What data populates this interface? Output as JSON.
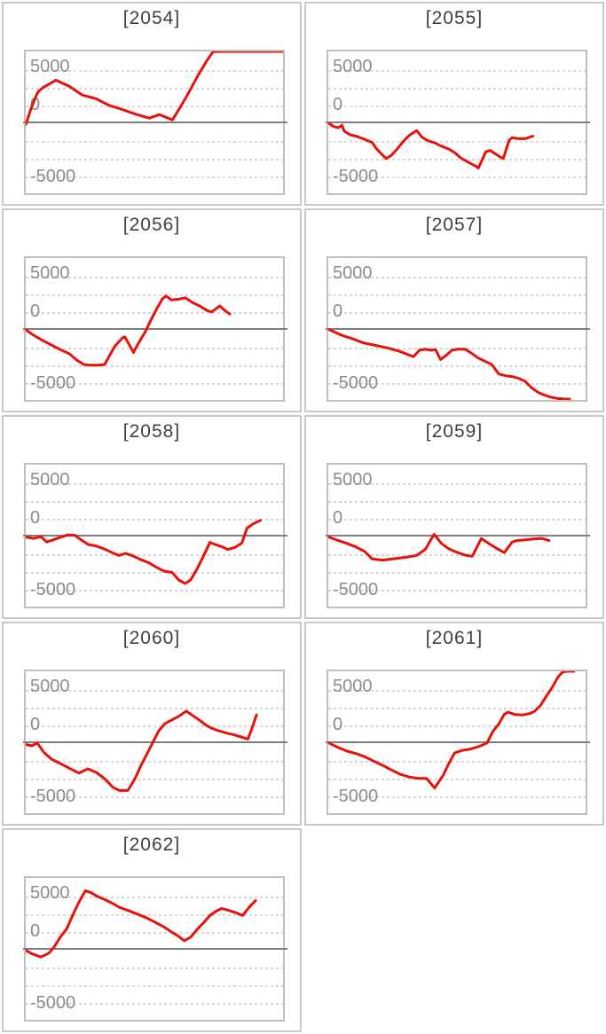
{
  "theme": {
    "line_color": "#e8120c",
    "zero_axis_color": "#7f7f7f",
    "gridline_color": "#d7d7d7",
    "tick_label_color": "#8c8c8c",
    "title_color": "#3f3f3f",
    "panel_border_color": "#c8c8c8",
    "plot_border_color": "#bfbfbf",
    "background": "#ffffff"
  },
  "chart_data": {
    "type": "line",
    "layout": "small-multiples 2 columns x 5 rows, last cell empty",
    "y_ticks": [
      "5000",
      "0",
      "-5000"
    ],
    "y_range": [
      -10000,
      10000
    ],
    "grid_interval_units": 2500,
    "legend": "none",
    "x_axis": "hidden (spins/time), values below are [x_percent, value]",
    "charts": [
      {
        "title": "[2054]",
        "series": [
          [
            0,
            -300
          ],
          [
            2.4,
            2300
          ],
          [
            4.6,
            4200
          ],
          [
            6.3,
            4800
          ],
          [
            11.7,
            5950
          ],
          [
            16.9,
            5100
          ],
          [
            22,
            3850
          ],
          [
            27.2,
            3350
          ],
          [
            32.4,
            2400
          ],
          [
            37.6,
            1800
          ],
          [
            42.8,
            1150
          ],
          [
            48,
            600
          ],
          [
            52,
            1100
          ],
          [
            57,
            350
          ],
          [
            60,
            2100
          ],
          [
            63.6,
            4350
          ],
          [
            67,
            6650
          ],
          [
            70.5,
            8750
          ],
          [
            72.8,
            9950
          ],
          [
            76,
            10000
          ],
          [
            100,
            10000
          ]
        ]
      },
      {
        "title": "[2055]",
        "series": [
          [
            0,
            -100
          ],
          [
            2.2,
            -600
          ],
          [
            3.9,
            -750
          ],
          [
            5.3,
            -400
          ],
          [
            6.2,
            -1250
          ],
          [
            8.5,
            -1750
          ],
          [
            11.3,
            -2000
          ],
          [
            14.2,
            -2400
          ],
          [
            17.1,
            -2850
          ],
          [
            18.8,
            -3750
          ],
          [
            21.1,
            -4600
          ],
          [
            22.4,
            -5100
          ],
          [
            24.5,
            -4650
          ],
          [
            26.8,
            -3750
          ],
          [
            29.1,
            -2700
          ],
          [
            31.4,
            -1850
          ],
          [
            34.3,
            -1150
          ],
          [
            36.5,
            -2100
          ],
          [
            38.8,
            -2600
          ],
          [
            41.1,
            -2850
          ],
          [
            44,
            -3350
          ],
          [
            46.8,
            -3750
          ],
          [
            49.1,
            -4250
          ],
          [
            51.4,
            -5000
          ],
          [
            54.3,
            -5600
          ],
          [
            57.2,
            -6150
          ],
          [
            58.3,
            -6450
          ],
          [
            61.2,
            -4150
          ],
          [
            62.9,
            -3950
          ],
          [
            64.6,
            -4350
          ],
          [
            66.9,
            -4900
          ],
          [
            68,
            -5100
          ],
          [
            70.3,
            -2500
          ],
          [
            71.5,
            -2150
          ],
          [
            73.8,
            -2300
          ],
          [
            76.6,
            -2300
          ],
          [
            78.9,
            -2000
          ],
          [
            79.5,
            -1950
          ]
        ]
      },
      {
        "title": "[2056]",
        "series": [
          [
            0,
            -100
          ],
          [
            3,
            -850
          ],
          [
            6.5,
            -1600
          ],
          [
            10,
            -2250
          ],
          [
            13.4,
            -2900
          ],
          [
            17,
            -3500
          ],
          [
            19.7,
            -4350
          ],
          [
            22.6,
            -5000
          ],
          [
            25,
            -5100
          ],
          [
            28.4,
            -5100
          ],
          [
            30.7,
            -5000
          ],
          [
            32.4,
            -3850
          ],
          [
            34.7,
            -2400
          ],
          [
            37.6,
            -1250
          ],
          [
            38.5,
            -1100
          ],
          [
            40.5,
            -2400
          ],
          [
            41.9,
            -3300
          ],
          [
            43.9,
            -1950
          ],
          [
            46.3,
            -500
          ],
          [
            48.5,
            1150
          ],
          [
            50.9,
            2850
          ],
          [
            53.2,
            4300
          ],
          [
            54.6,
            4650
          ],
          [
            56.6,
            4100
          ],
          [
            59.5,
            4200
          ],
          [
            62,
            4400
          ],
          [
            64.7,
            3750
          ],
          [
            67.6,
            3250
          ],
          [
            70.5,
            2600
          ],
          [
            72.2,
            2400
          ],
          [
            73.9,
            2850
          ],
          [
            75.4,
            3250
          ],
          [
            77.4,
            2600
          ],
          [
            79.3,
            2100
          ]
        ]
      },
      {
        "title": "[2057]",
        "series": [
          [
            0.4,
            -100
          ],
          [
            5,
            -850
          ],
          [
            9.6,
            -1400
          ],
          [
            13.6,
            -1950
          ],
          [
            18.2,
            -2300
          ],
          [
            22.8,
            -2650
          ],
          [
            27.4,
            -3100
          ],
          [
            32,
            -3750
          ],
          [
            33.1,
            -3900
          ],
          [
            35.4,
            -3000
          ],
          [
            37.7,
            -2850
          ],
          [
            40,
            -3000
          ],
          [
            41.7,
            -2900
          ],
          [
            43.6,
            -4300
          ],
          [
            45.7,
            -3750
          ],
          [
            48,
            -3000
          ],
          [
            50.3,
            -2850
          ],
          [
            53.2,
            -2850
          ],
          [
            55.4,
            -3350
          ],
          [
            58.3,
            -4100
          ],
          [
            61.2,
            -4600
          ],
          [
            63.5,
            -5000
          ],
          [
            66.3,
            -6350
          ],
          [
            69.2,
            -6600
          ],
          [
            72.1,
            -6750
          ],
          [
            74.3,
            -7000
          ],
          [
            76.6,
            -7400
          ],
          [
            78.9,
            -8250
          ],
          [
            81.2,
            -8850
          ],
          [
            83.5,
            -9250
          ],
          [
            86.4,
            -9600
          ],
          [
            89.2,
            -9800
          ],
          [
            92.1,
            -9875
          ],
          [
            93.8,
            -9875
          ]
        ]
      },
      {
        "title": "[2058]",
        "series": [
          [
            0,
            -200
          ],
          [
            3,
            -400
          ],
          [
            5.9,
            -150
          ],
          [
            8.2,
            -900
          ],
          [
            12.2,
            -400
          ],
          [
            16.3,
            100
          ],
          [
            19.1,
            50
          ],
          [
            21.5,
            -600
          ],
          [
            24.3,
            -1250
          ],
          [
            27.2,
            -1450
          ],
          [
            30.7,
            -1900
          ],
          [
            33.6,
            -2400
          ],
          [
            36.2,
            -2800
          ],
          [
            38.8,
            -2500
          ],
          [
            41.3,
            -2800
          ],
          [
            44.5,
            -3350
          ],
          [
            48,
            -3850
          ],
          [
            50.5,
            -4400
          ],
          [
            53.7,
            -5000
          ],
          [
            56.9,
            -5200
          ],
          [
            59.5,
            -6250
          ],
          [
            62,
            -6750
          ],
          [
            64.1,
            -6250
          ],
          [
            66.4,
            -4800
          ],
          [
            68.8,
            -3100
          ],
          [
            71.6,
            -950
          ],
          [
            73.6,
            -1250
          ],
          [
            76.2,
            -1550
          ],
          [
            78.5,
            -1950
          ],
          [
            81.4,
            -1650
          ],
          [
            84,
            -1050
          ],
          [
            86,
            1050
          ],
          [
            88.3,
            1650
          ],
          [
            91.2,
            2150
          ]
        ]
      },
      {
        "title": "[2059]",
        "series": [
          [
            0.2,
            -200
          ],
          [
            3.9,
            -700
          ],
          [
            7.3,
            -1100
          ],
          [
            10.8,
            -1600
          ],
          [
            14.2,
            -2250
          ],
          [
            17.1,
            -3300
          ],
          [
            21.1,
            -3450
          ],
          [
            25.7,
            -3250
          ],
          [
            30.2,
            -3050
          ],
          [
            34.3,
            -2800
          ],
          [
            37.7,
            -1950
          ],
          [
            41.1,
            200
          ],
          [
            44,
            -1100
          ],
          [
            46.8,
            -1850
          ],
          [
            50.3,
            -2400
          ],
          [
            53.7,
            -2800
          ],
          [
            56,
            -2900
          ],
          [
            59.5,
            -400
          ],
          [
            62.3,
            -1100
          ],
          [
            65.7,
            -1850
          ],
          [
            68.4,
            -2400
          ],
          [
            71.5,
            -900
          ],
          [
            73.2,
            -700
          ],
          [
            76.6,
            -600
          ],
          [
            80.1,
            -450
          ],
          [
            82.9,
            -400
          ],
          [
            84.1,
            -500
          ],
          [
            85.8,
            -700
          ]
        ]
      },
      {
        "title": "[2060]",
        "series": [
          [
            0,
            -300
          ],
          [
            2.4,
            -500
          ],
          [
            4.5,
            -100
          ],
          [
            7,
            -1400
          ],
          [
            10.1,
            -2400
          ],
          [
            13.4,
            -3000
          ],
          [
            16.9,
            -3650
          ],
          [
            20.7,
            -4350
          ],
          [
            24.1,
            -3750
          ],
          [
            27.4,
            -4250
          ],
          [
            30.7,
            -5150
          ],
          [
            33.9,
            -6350
          ],
          [
            36.4,
            -6800
          ],
          [
            39.7,
            -6800
          ],
          [
            42.5,
            -5100
          ],
          [
            44.7,
            -3350
          ],
          [
            47.1,
            -1650
          ],
          [
            49.4,
            0
          ],
          [
            51.7,
            1600
          ],
          [
            54,
            2600
          ],
          [
            56.3,
            3050
          ],
          [
            59.5,
            3650
          ],
          [
            62.4,
            4400
          ],
          [
            65.3,
            3650
          ],
          [
            67.8,
            3050
          ],
          [
            70.1,
            2400
          ],
          [
            72.4,
            1950
          ],
          [
            75.1,
            1600
          ],
          [
            78,
            1300
          ],
          [
            80.9,
            1050
          ],
          [
            83.7,
            750
          ],
          [
            86.3,
            450
          ],
          [
            87.8,
            1800
          ],
          [
            89.7,
            3850
          ]
        ]
      },
      {
        "title": "[2061]",
        "series": [
          [
            0.2,
            -100
          ],
          [
            3.9,
            -750
          ],
          [
            7.3,
            -1250
          ],
          [
            10.8,
            -1600
          ],
          [
            14.2,
            -2050
          ],
          [
            17.6,
            -2650
          ],
          [
            21.1,
            -3250
          ],
          [
            24.5,
            -3900
          ],
          [
            27.9,
            -4500
          ],
          [
            31.4,
            -4900
          ],
          [
            35.1,
            -5100
          ],
          [
            38.2,
            -5100
          ],
          [
            41.3,
            -6450
          ],
          [
            44.6,
            -4700
          ],
          [
            46.8,
            -3050
          ],
          [
            49.1,
            -1500
          ],
          [
            52,
            -1150
          ],
          [
            55.4,
            -950
          ],
          [
            58.9,
            -550
          ],
          [
            61.7,
            -100
          ],
          [
            64,
            1550
          ],
          [
            66.3,
            2600
          ],
          [
            68.3,
            3900
          ],
          [
            69.8,
            4250
          ],
          [
            72.6,
            3900
          ],
          [
            75.5,
            3850
          ],
          [
            78.4,
            4050
          ],
          [
            80.1,
            4350
          ],
          [
            82.4,
            5150
          ],
          [
            84.6,
            6400
          ],
          [
            86.9,
            7650
          ],
          [
            89.2,
            9150
          ],
          [
            91,
            9875
          ],
          [
            92.7,
            10000
          ],
          [
            95.5,
            10000
          ]
        ]
      },
      {
        "title": "[2062]",
        "series": [
          [
            0,
            -200
          ],
          [
            2.4,
            -700
          ],
          [
            5.9,
            -1150
          ],
          [
            9,
            -600
          ],
          [
            11.1,
            300
          ],
          [
            13.4,
            1650
          ],
          [
            15.9,
            2800
          ],
          [
            18.2,
            4700
          ],
          [
            20.5,
            6450
          ],
          [
            23.2,
            8200
          ],
          [
            25.5,
            7900
          ],
          [
            27.8,
            7400
          ],
          [
            30.7,
            6950
          ],
          [
            33.6,
            6450
          ],
          [
            36.4,
            5850
          ],
          [
            39.9,
            5400
          ],
          [
            43.4,
            4900
          ],
          [
            46.8,
            4400
          ],
          [
            50.3,
            3750
          ],
          [
            53.7,
            3100
          ],
          [
            56.6,
            2400
          ],
          [
            59.5,
            1750
          ],
          [
            61.6,
            1150
          ],
          [
            64.1,
            1650
          ],
          [
            67,
            2900
          ],
          [
            69.3,
            3750
          ],
          [
            71.6,
            4700
          ],
          [
            73.9,
            5300
          ],
          [
            76.2,
            5700
          ],
          [
            79.1,
            5400
          ],
          [
            81.7,
            5100
          ],
          [
            84.3,
            4700
          ],
          [
            87,
            5950
          ],
          [
            89.3,
            6800
          ]
        ]
      }
    ]
  }
}
